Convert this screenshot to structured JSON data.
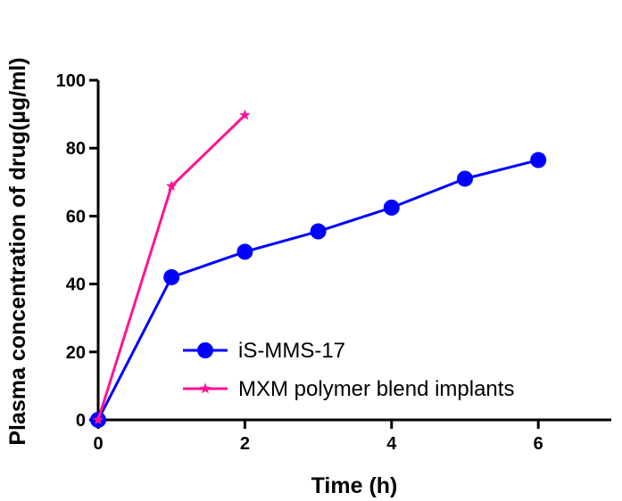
{
  "chart_data": {
    "type": "line",
    "xlabel": "Time (h)",
    "ylabel": "Plasma concentration of drug(µg/ml)",
    "xlim": [
      0,
      7
    ],
    "ylim": [
      0,
      100
    ],
    "x_ticks": [
      0,
      2,
      4,
      6
    ],
    "y_ticks": [
      0,
      20,
      40,
      60,
      80,
      100
    ],
    "grid": false,
    "legend_position": "bottom-right",
    "series": [
      {
        "name": "iS-MMS-17",
        "color": "#0000ff",
        "marker": "circle",
        "x": [
          0,
          1,
          2,
          3,
          4,
          5,
          6
        ],
        "y": [
          0,
          42,
          49.5,
          55.5,
          62.5,
          71,
          76.5
        ]
      },
      {
        "name": "MXM polymer blend implants",
        "color": "#ff1493",
        "marker": "star",
        "x": [
          0,
          1,
          2
        ],
        "y": [
          0,
          68.8,
          89.7
        ]
      }
    ]
  }
}
